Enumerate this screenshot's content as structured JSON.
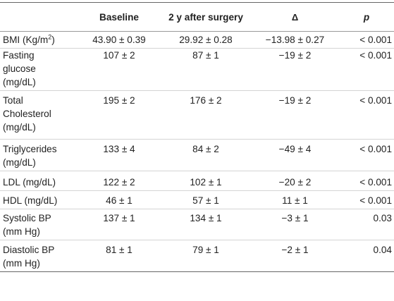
{
  "table": {
    "headers": {
      "variable": "",
      "baseline": "Baseline",
      "after": "2 y after surgery",
      "delta": "Δ",
      "p": "p"
    },
    "rows": [
      {
        "variable": "BMI (Kg/m",
        "variable_sup": "2",
        "variable_end": ")",
        "baseline": "43.90 ± 0.39",
        "after": "29.92 ± 0.28",
        "delta": "−13.98 ± 0.27",
        "p": "< 0.001"
      },
      {
        "variable": "Fasting\nglucose\n(mg/dL)",
        "baseline": "107 ± 2",
        "after": "87 ± 1",
        "delta": "−19 ± 2",
        "p": "< 0.001"
      },
      {
        "variable": "Total\nCholesterol\n(mg/dL)",
        "baseline": "195 ± 2",
        "after": "176 ± 2",
        "delta": "−19 ± 2",
        "p": "< 0.001"
      },
      {
        "variable": "Triglycerides\n(mg/dL)",
        "baseline": "133 ± 4",
        "after": "84 ± 2",
        "delta": "−49 ± 4",
        "p": "< 0.001"
      },
      {
        "variable": "LDL (mg/dL)",
        "baseline": "122 ± 2",
        "after": "102 ± 1",
        "delta": "−20 ± 2",
        "p": "< 0.001"
      },
      {
        "variable": "HDL (mg/dL)",
        "baseline": "46 ± 1",
        "after": "57 ± 1",
        "delta": "11 ± 1",
        "p": "< 0.001"
      },
      {
        "variable": "Systolic BP\n(mm Hg)",
        "baseline": "137 ± 1",
        "after": "134 ± 1",
        "delta": "−3 ± 1",
        "p": "0.03"
      },
      {
        "variable": "Diastolic BP\n(mm Hg)",
        "baseline": "81 ± 1",
        "after": "79 ± 1",
        "delta": "−2 ± 1",
        "p": "0.04"
      }
    ]
  }
}
